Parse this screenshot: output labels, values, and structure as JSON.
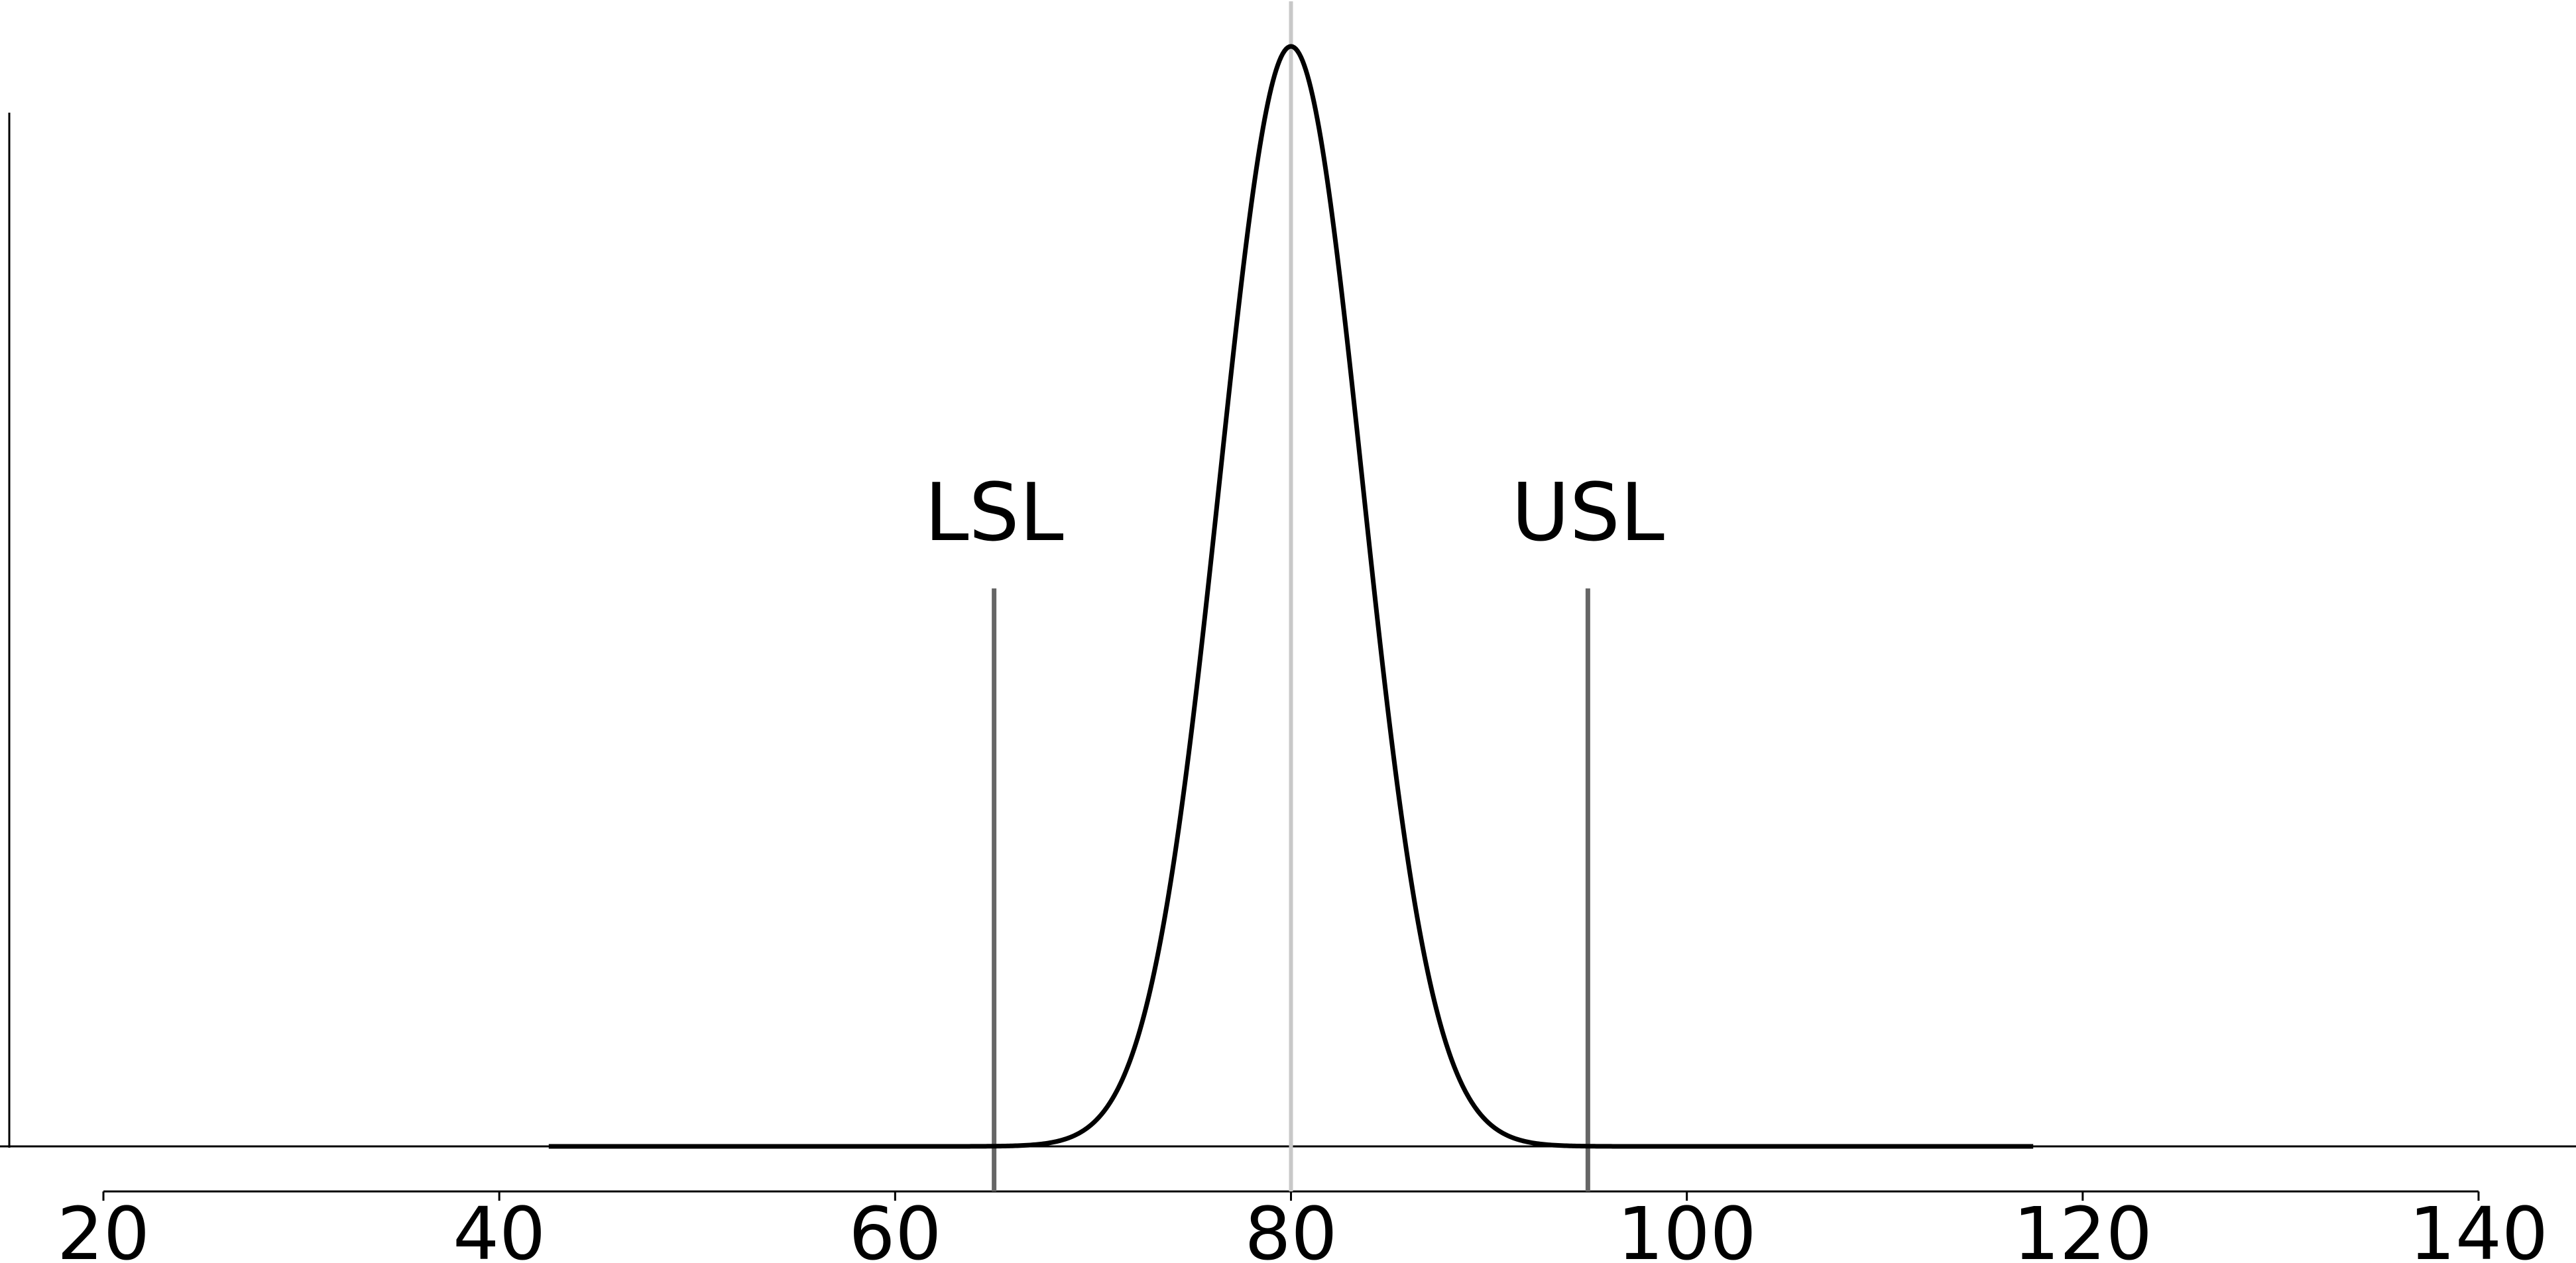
{
  "chart_data": {
    "type": "line",
    "title": "",
    "xlabel": "",
    "ylabel": "",
    "xlim": [
      20,
      140
    ],
    "x_ticks": [
      20,
      40,
      60,
      80,
      100,
      120,
      140
    ],
    "x_tick_labels": [
      "20",
      "40",
      "60",
      "80",
      "100",
      "120",
      "140"
    ],
    "grid": false,
    "legend": "none",
    "series": [
      {
        "distribution": "normal",
        "mean": 80,
        "std_dev": 3.6,
        "x_range": [
          42.5,
          117.5
        ],
        "color": "#000000"
      }
    ],
    "vertical_lines": [
      {
        "x": 65,
        "label": "LSL",
        "color": "#666666"
      },
      {
        "x": 80,
        "label": "",
        "color": "#c8c8c8"
      },
      {
        "x": 95,
        "label": "USL",
        "color": "#666666"
      }
    ]
  }
}
